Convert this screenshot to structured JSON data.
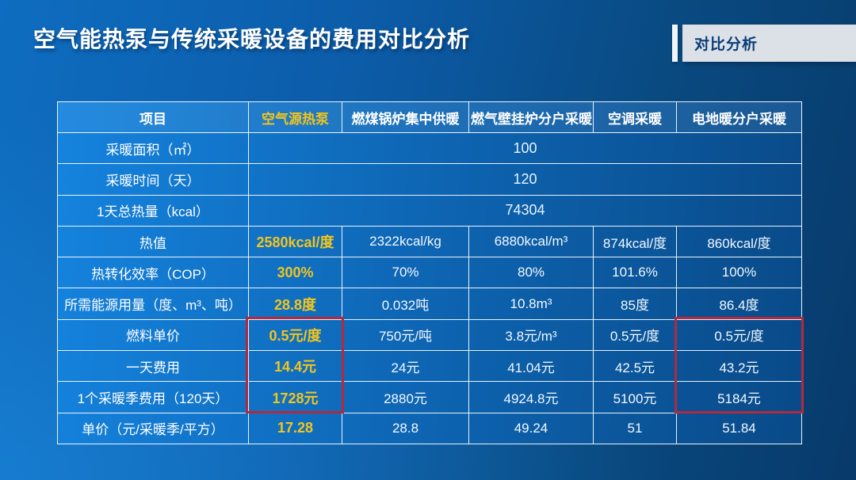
{
  "header": {
    "title": "空气能热泵与传统采暖设备的费用对比分析",
    "badge": "对比分析"
  },
  "table": {
    "columns": [
      "项目",
      "空气源热泵",
      "燃煤锅炉集中供暖",
      "燃气壁挂炉分户采暖",
      "空调采暖",
      "电地暖分户采暖"
    ],
    "spanned_rows": [
      {
        "label": "采暖面积（㎡）",
        "value": "100"
      },
      {
        "label": "采暖时间（天）",
        "value": "120"
      },
      {
        "label": "1天总热量（kcal）",
        "value": "74304"
      }
    ],
    "rows": [
      {
        "label": "热值",
        "values": [
          "2580kcal/度",
          "2322kcal/kg",
          "6880kcal/m³",
          "874kcal/度",
          "860kcal/度"
        ]
      },
      {
        "label": "热转化效率（COP）",
        "values": [
          "300%",
          "70%",
          "80%",
          "101.6%",
          "100%"
        ]
      },
      {
        "label": "所需能源用量（度、m³、吨）",
        "values": [
          "28.8度",
          "0.032吨",
          "10.8m³",
          "85度",
          "86.4度"
        ]
      },
      {
        "label": "燃料单价",
        "values": [
          "0.5元/度",
          "750元/吨",
          "3.8元/m³",
          "0.5元/度",
          "0.5元/度"
        ]
      },
      {
        "label": "一天费用",
        "values": [
          "14.4元",
          "24元",
          "41.04元",
          "42.5元",
          "43.2元"
        ]
      },
      {
        "label": "1个采暖季费用（120天）",
        "values": [
          "1728元",
          "2880元",
          "4924.8元",
          "5100元",
          "5184元"
        ]
      },
      {
        "label": "单价（元/采暖季/平方）",
        "values": [
          "17.28",
          "28.8",
          "49.24",
          "51",
          "51.84"
        ]
      }
    ],
    "highlighted_columns": [
      "空气源热泵",
      "电地暖分户采暖"
    ],
    "highlighted_row_span": [
      "燃料单价",
      "一天费用",
      "1个采暖季费用（120天）"
    ]
  },
  "chart_data": {
    "type": "table",
    "title": "空气能热泵与传统采暖设备的费用对比分析",
    "categories": [
      "空气源热泵",
      "燃煤锅炉集中供暖",
      "燃气壁挂炉分户采暖",
      "空调采暖",
      "电地暖分户采暖"
    ],
    "shared_values": {
      "采暖面积（㎡）": 100,
      "采暖时间（天）": 120,
      "1天总热量（kcal）": 74304
    },
    "series": [
      {
        "name": "热值",
        "values": [
          "2580kcal/度",
          "2322kcal/kg",
          "6880kcal/m³",
          "874kcal/度",
          "860kcal/度"
        ]
      },
      {
        "name": "热转化效率（COP）",
        "values": [
          "300%",
          "70%",
          "80%",
          "101.6%",
          "100%"
        ]
      },
      {
        "name": "所需能源用量（度、m³、吨）",
        "values": [
          "28.8度",
          "0.032吨",
          "10.8m³",
          "85度",
          "86.4度"
        ]
      },
      {
        "name": "燃料单价",
        "values": [
          "0.5元/度",
          "750元/吨",
          "3.8元/m³",
          "0.5元/度",
          "0.5元/度"
        ]
      },
      {
        "name": "一天费用",
        "values": [
          14.4,
          24,
          41.04,
          42.5,
          43.2
        ]
      },
      {
        "name": "1个采暖季费用（120天）",
        "values": [
          1728,
          2880,
          4924.8,
          5100,
          5184
        ]
      },
      {
        "name": "单价（元/采暖季/平方）",
        "values": [
          17.28,
          28.8,
          49.24,
          51,
          51.84
        ]
      }
    ]
  },
  "colors": {
    "accent_yellow": "#f2c51d",
    "highlight_red": "#b5293d",
    "badge_bg": "#dce1e7",
    "badge_text": "#0a3c78",
    "table_blue": "#0d62ae",
    "background_dark": "#083a6b",
    "background_bright": "#0e6dc0"
  }
}
